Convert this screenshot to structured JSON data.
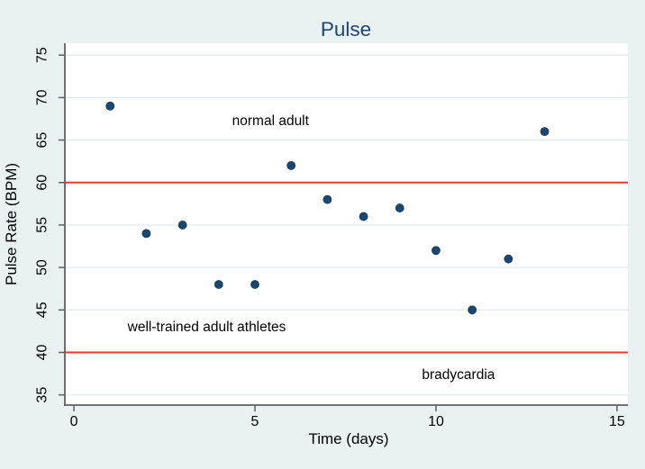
{
  "title": "Pulse",
  "colors": {
    "background": "#e9f1f3",
    "plot_background": "#ffffff",
    "gridline": "#e7eef3",
    "axis": "#606060",
    "marker": "#1a476f",
    "reference_line": "#ee3b33",
    "title": "#1a476f",
    "text": "#000000"
  },
  "chart_data": {
    "type": "scatter",
    "title": "Pulse",
    "xlabel": "Time (days)",
    "ylabel": "Pulse Rate (BPM)",
    "x": [
      1,
      2,
      3,
      4,
      5,
      6,
      7,
      8,
      9,
      10,
      11,
      12,
      13
    ],
    "y": [
      69,
      54,
      55,
      48,
      48,
      62,
      58,
      56,
      57,
      52,
      45,
      51,
      66
    ],
    "xticks": [
      0,
      5,
      10,
      15
    ],
    "yticks": [
      35,
      40,
      45,
      50,
      55,
      60,
      65,
      70,
      75
    ],
    "xlim": [
      -0.25,
      15.3
    ],
    "ylim": [
      33.8,
      76.4
    ],
    "grid": true,
    "legend": "none",
    "reference_lines": [
      {
        "y": 60
      },
      {
        "y": 40
      }
    ],
    "annotations": [
      {
        "text": "normal adult",
        "x": 5.43,
        "y": 67.3
      },
      {
        "text": "well-trained adult athletes",
        "x": 3.67,
        "y": 43.0
      },
      {
        "text": "bradycardia",
        "x": 10.62,
        "y": 37.4
      }
    ]
  }
}
